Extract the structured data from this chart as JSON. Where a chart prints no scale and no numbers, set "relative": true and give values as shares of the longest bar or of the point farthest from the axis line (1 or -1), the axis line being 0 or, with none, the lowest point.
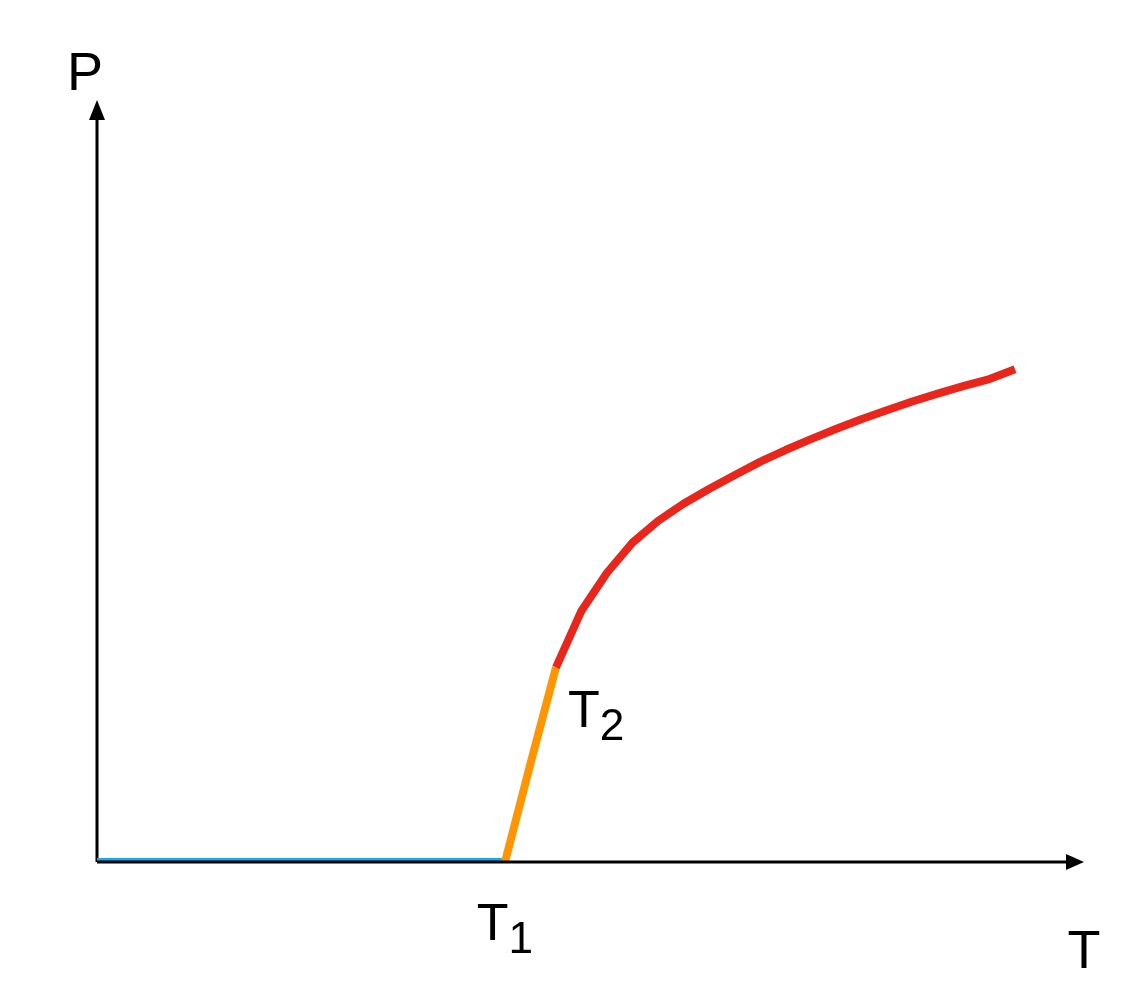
{
  "chart_data": {
    "type": "line",
    "relative": true,
    "xlabel": "T",
    "ylabel": "P",
    "categories": [
      null,
      null,
      null,
      null,
      null,
      null,
      null,
      null,
      null,
      null,
      null,
      null,
      null,
      null,
      null,
      null,
      null,
      null,
      null,
      null,
      null,
      null,
      null,
      null,
      null,
      null,
      null,
      null,
      null,
      null,
      null,
      null,
      null,
      null,
      null,
      null,
      null,
      null,
      null
    ],
    "series": [
      {
        "color": "#1ea7ec",
        "values": [
          0,
          0,
          0,
          0,
          0,
          0,
          0,
          0,
          0,
          0,
          0,
          0,
          0,
          0,
          0,
          0,
          0,
          null,
          null,
          null,
          null,
          null,
          null,
          null,
          null,
          null,
          null,
          null,
          null,
          null,
          null,
          null,
          null,
          null,
          null,
          null,
          null,
          null,
          null
        ]
      },
      {
        "color": "#ff9500",
        "values": [
          null,
          null,
          null,
          null,
          null,
          null,
          null,
          null,
          null,
          null,
          null,
          null,
          null,
          null,
          null,
          null,
          0,
          0.2,
          0.395,
          null,
          null,
          null,
          null,
          null,
          null,
          null,
          null,
          null,
          null,
          null,
          null,
          null,
          null,
          null,
          null,
          null,
          null,
          null,
          null
        ]
      },
      {
        "color": "#e8261c",
        "values": [
          null,
          null,
          null,
          null,
          null,
          null,
          null,
          null,
          null,
          null,
          null,
          null,
          null,
          null,
          null,
          null,
          null,
          null,
          0.395,
          0.51,
          0.587,
          0.648,
          0.692,
          0.727,
          0.757,
          0.785,
          0.812,
          0.836,
          0.858,
          0.879,
          0.899,
          0.917,
          0.935,
          0.951,
          0.966,
          0.98,
          1,
          null,
          null
        ]
      }
    ],
    "annotations": [
      "T$_{1}$",
      "T$_{2}$"
    ],
    "legend": false,
    "grid": false,
    "marker": "none",
    "line_style": "solid"
  }
}
